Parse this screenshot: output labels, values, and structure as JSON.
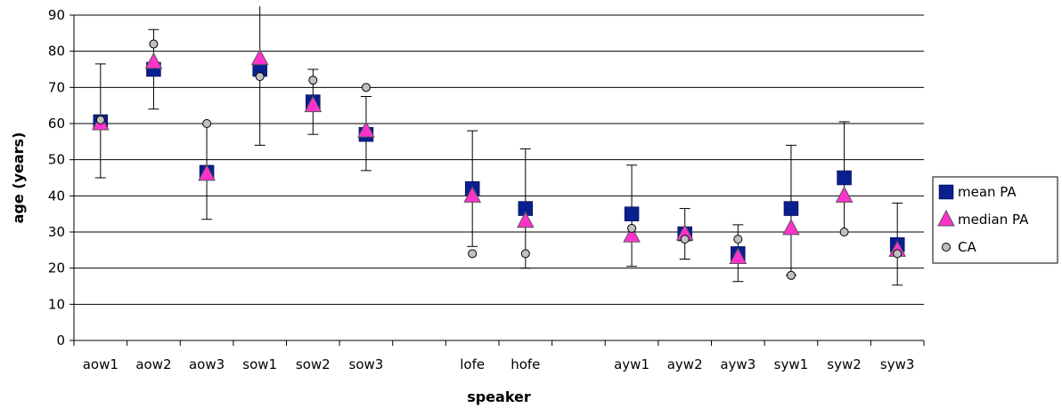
{
  "chart_data": {
    "type": "scatter",
    "xlabel": "speaker",
    "ylabel": "age (years)",
    "ylim": [
      0,
      90
    ],
    "yticks": [
      "0",
      "10",
      "20",
      "30",
      "40",
      "50",
      "60",
      "70",
      "80",
      "90"
    ],
    "grid": "horizontal",
    "legend_position": "right",
    "categories": [
      "aow1",
      "aow2",
      "aow3",
      "sow1",
      "sow2",
      "sow3",
      "",
      "lofe",
      "hofe",
      "",
      "ayw1",
      "ayw2",
      "ayw3",
      "syw1",
      "syw2",
      "syw3"
    ],
    "series": [
      {
        "name": "mean PA",
        "marker": "square",
        "color": "#0a1f8f",
        "values": [
          60.5,
          75,
          46.5,
          75,
          66,
          57,
          null,
          42,
          36.5,
          null,
          35,
          29.5,
          24,
          36.5,
          45,
          26.5
        ]
      },
      {
        "name": "median PA",
        "marker": "triangle",
        "color": "#ff33cc",
        "values": [
          60,
          77,
          46,
          78,
          65,
          58,
          null,
          40,
          33,
          null,
          29,
          29.5,
          23,
          31,
          40,
          25
        ]
      },
      {
        "name": "CA",
        "marker": "circle",
        "color": "#c0c0c0",
        "values": [
          61,
          82,
          60,
          73,
          72,
          70,
          null,
          24,
          24,
          null,
          31,
          28,
          28,
          18,
          30,
          24
        ]
      }
    ],
    "error_bars": {
      "series": "mean PA",
      "low": [
        45,
        64,
        33.5,
        54,
        57,
        47,
        null,
        26,
        20,
        null,
        20.5,
        22.5,
        16.3,
        18,
        30,
        15.3
      ],
      "high": [
        76.5,
        86,
        60,
        92.5,
        75,
        67.5,
        null,
        58,
        53,
        null,
        48.5,
        36.5,
        32,
        54,
        60.5,
        38
      ]
    }
  }
}
